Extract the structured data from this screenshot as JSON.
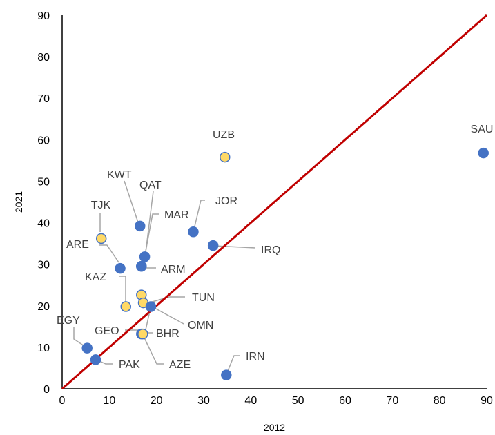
{
  "chart_data": {
    "type": "scatter",
    "xlabel": "2012",
    "ylabel": "2021",
    "xlim": [
      0,
      90
    ],
    "ylim": [
      0,
      90
    ],
    "x_ticks": [
      "0",
      "10",
      "20",
      "30",
      "40",
      "50",
      "60",
      "70",
      "80",
      "90"
    ],
    "y_ticks": [
      "0",
      "10",
      "20",
      "30",
      "40",
      "50",
      "60",
      "70",
      "80",
      "90"
    ],
    "grid": false,
    "legend": "none",
    "reference_line": {
      "from": [
        0,
        0
      ],
      "to": [
        90,
        90
      ],
      "color": "#c00000"
    },
    "colors": {
      "blue_marker": "#4472c4",
      "yellow_marker": "#ffd966",
      "yellow_marker_edge": "#4472c4",
      "label_text": "#404040",
      "leader_line": "#a6a6a6"
    },
    "points": [
      {
        "label": "SAU",
        "x": 89.3,
        "y": 56.8,
        "color": "blue"
      },
      {
        "label": "UZB",
        "x": 34.5,
        "y": 55.8,
        "color": "yellow"
      },
      {
        "label": "JOR",
        "x": 27.8,
        "y": 37.8,
        "color": "blue"
      },
      {
        "label": "IRQ",
        "x": 32.0,
        "y": 34.5,
        "color": "blue"
      },
      {
        "label": "KWT",
        "x": 16.5,
        "y": 39.2,
        "color": "blue"
      },
      {
        "label": "QAT",
        "x": 17.5,
        "y": 31.8,
        "color": "blue"
      },
      {
        "label": "MAR",
        "x": 16.8,
        "y": 29.5,
        "color": "blue"
      },
      {
        "label": "ARM",
        "x": 16.8,
        "y": 29.5,
        "color": "blue"
      },
      {
        "label": "TJK",
        "x": 8.3,
        "y": 36.2,
        "color": "yellow"
      },
      {
        "label": "ARE",
        "x": 12.3,
        "y": 29.0,
        "color": "blue"
      },
      {
        "label": "KAZ",
        "x": 13.5,
        "y": 19.8,
        "color": "yellow"
      },
      {
        "label": "TUN",
        "x": 16.8,
        "y": 22.6,
        "color": "yellow"
      },
      {
        "label": "OMN",
        "x": 17.2,
        "y": 20.7,
        "color": "yellow"
      },
      {
        "label": "BHR",
        "x": 18.8,
        "y": 19.8,
        "color": "blue"
      },
      {
        "label": "GEO",
        "x": 16.8,
        "y": 13.2,
        "color": "blue"
      },
      {
        "label": "AZE",
        "x": 17.1,
        "y": 13.2,
        "color": "yellow"
      },
      {
        "label": "EGY",
        "x": 5.3,
        "y": 9.8,
        "color": "blue"
      },
      {
        "label": "PAK",
        "x": 7.1,
        "y": 7.0,
        "color": "blue"
      },
      {
        "label": "IRN",
        "x": 34.8,
        "y": 3.3,
        "color": "blue"
      }
    ]
  }
}
